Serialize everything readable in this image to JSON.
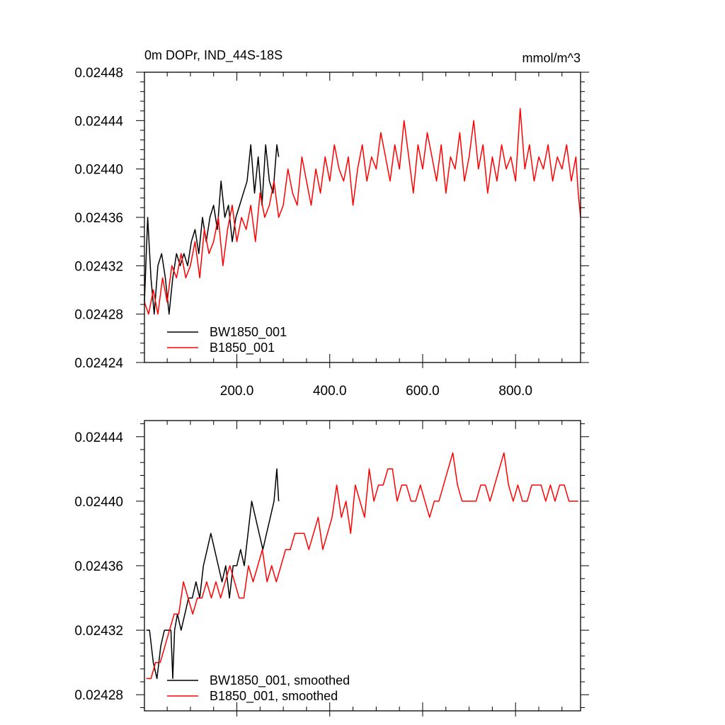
{
  "colors": {
    "BW": "#000000",
    "B": "#ff0000"
  },
  "chart_data": [
    {
      "type": "line",
      "title": "0m DOPr, IND_44S-18S",
      "units": "mmol/m^3",
      "xlabel": "",
      "ylabel": "",
      "xlim": [
        1,
        940
      ],
      "ylim": [
        0.02424,
        0.02448
      ],
      "x_ticks": [
        200,
        400,
        600,
        800
      ],
      "x_tick_labels": [
        "200.0",
        "400.0",
        "600.0",
        "800.0"
      ],
      "y_ticks": [
        0.02424,
        0.02428,
        0.02432,
        0.02436,
        0.0244,
        0.02444,
        0.02448
      ],
      "y_tick_labels": [
        "0.02424",
        "0.02428",
        "0.02432",
        "0.02436",
        "0.02440",
        "0.02444",
        "0.02448"
      ],
      "grid": false,
      "legend_position": "bottom-left",
      "series": [
        {
          "name": "BW1850_001",
          "color_key": "BW",
          "x": [
            1,
            8,
            15,
            22,
            30,
            38,
            46,
            54,
            62,
            70,
            78,
            86,
            94,
            102,
            110,
            118,
            126,
            134,
            142,
            150,
            158,
            166,
            174,
            182,
            190,
            198,
            206,
            214,
            222,
            230,
            238,
            246,
            254,
            262,
            270,
            278,
            286,
            290
          ],
          "y": [
            0.02429,
            0.02436,
            0.02431,
            0.02428,
            0.02432,
            0.02433,
            0.02431,
            0.02428,
            0.02431,
            0.02433,
            0.02432,
            0.02433,
            0.02432,
            0.02434,
            0.02435,
            0.02433,
            0.02436,
            0.02434,
            0.02436,
            0.02437,
            0.02435,
            0.02439,
            0.02436,
            0.02437,
            0.02434,
            0.02436,
            0.02437,
            0.02438,
            0.02439,
            0.02442,
            0.02438,
            0.02441,
            0.02437,
            0.02442,
            0.02439,
            0.02438,
            0.02442,
            0.02441
          ]
        },
        {
          "name": "B1850_001",
          "color_key": "B",
          "x": [
            1,
            10,
            20,
            30,
            40,
            50,
            60,
            70,
            80,
            90,
            100,
            110,
            120,
            130,
            140,
            150,
            160,
            170,
            180,
            190,
            200,
            210,
            220,
            230,
            240,
            250,
            260,
            270,
            280,
            290,
            300,
            310,
            320,
            330,
            340,
            350,
            360,
            370,
            380,
            390,
            400,
            410,
            420,
            430,
            440,
            450,
            460,
            470,
            480,
            490,
            500,
            510,
            520,
            530,
            540,
            550,
            560,
            570,
            580,
            590,
            600,
            610,
            620,
            630,
            640,
            650,
            660,
            670,
            680,
            690,
            700,
            710,
            720,
            730,
            740,
            750,
            760,
            770,
            780,
            790,
            800,
            810,
            820,
            830,
            840,
            850,
            860,
            870,
            880,
            890,
            900,
            910,
            920,
            930,
            935,
            940
          ],
          "y": [
            0.02429,
            0.02428,
            0.0243,
            0.02428,
            0.02431,
            0.02429,
            0.02432,
            0.02431,
            0.02433,
            0.02431,
            0.02432,
            0.02434,
            0.02431,
            0.02435,
            0.02433,
            0.02434,
            0.02436,
            0.02432,
            0.02435,
            0.02437,
            0.02434,
            0.02436,
            0.02435,
            0.02437,
            0.02434,
            0.02438,
            0.02436,
            0.02437,
            0.02439,
            0.02436,
            0.02437,
            0.0244,
            0.02438,
            0.02437,
            0.02441,
            0.02439,
            0.02437,
            0.0244,
            0.02438,
            0.02441,
            0.02439,
            0.02442,
            0.0244,
            0.02439,
            0.02441,
            0.02437,
            0.0244,
            0.02442,
            0.02439,
            0.02441,
            0.0244,
            0.02443,
            0.02441,
            0.02439,
            0.02442,
            0.0244,
            0.02444,
            0.02441,
            0.02438,
            0.02442,
            0.0244,
            0.02443,
            0.02441,
            0.02439,
            0.02442,
            0.02438,
            0.02441,
            0.0244,
            0.02443,
            0.02439,
            0.02441,
            0.02444,
            0.0244,
            0.02442,
            0.02438,
            0.02441,
            0.02439,
            0.02442,
            0.0244,
            0.02441,
            0.02439,
            0.02445,
            0.0244,
            0.02442,
            0.02439,
            0.02441,
            0.0244,
            0.02442,
            0.02439,
            0.02441,
            0.0244,
            0.02442,
            0.02439,
            0.02441,
            0.02438,
            0.02436
          ]
        }
      ]
    },
    {
      "type": "line",
      "title": "",
      "xlabel": "",
      "ylabel": "",
      "xlim": [
        1,
        940
      ],
      "ylim": [
        0.02427,
        0.02445
      ],
      "x_ticks": [
        200,
        400,
        600,
        800
      ],
      "y_ticks": [
        0.02428,
        0.02432,
        0.02436,
        0.0244,
        0.02444
      ],
      "y_tick_labels": [
        "0.02428",
        "0.02432",
        "0.02436",
        "0.02440",
        "0.02444"
      ],
      "grid": false,
      "legend_position": "bottom-left",
      "series": [
        {
          "name": "BW1850_001, smoothed",
          "color_key": "BW",
          "x": [
            5,
            12,
            20,
            28,
            36,
            44,
            52,
            58,
            62,
            66,
            72,
            80,
            88,
            96,
            104,
            112,
            120,
            128,
            136,
            144,
            152,
            160,
            168,
            176,
            184,
            192,
            200,
            208,
            216,
            224,
            232,
            240,
            248,
            256,
            264,
            272,
            280,
            286,
            290
          ],
          "y": [
            0.02432,
            0.02432,
            0.0243,
            0.02429,
            0.02431,
            0.02432,
            0.02432,
            0.02432,
            0.02429,
            0.02432,
            0.02433,
            0.02432,
            0.02433,
            0.02434,
            0.02434,
            0.02435,
            0.02434,
            0.02436,
            0.02437,
            0.02438,
            0.02437,
            0.02436,
            0.02435,
            0.02436,
            0.02434,
            0.02436,
            0.02436,
            0.02437,
            0.02436,
            0.02438,
            0.0244,
            0.02439,
            0.02438,
            0.02437,
            0.02438,
            0.02439,
            0.0244,
            0.02442,
            0.0244
          ]
        },
        {
          "name": "B1850_001, smoothed",
          "color_key": "B",
          "x": [
            5,
            15,
            25,
            35,
            45,
            55,
            65,
            75,
            85,
            95,
            105,
            115,
            125,
            135,
            145,
            155,
            165,
            175,
            185,
            195,
            205,
            215,
            225,
            235,
            245,
            255,
            265,
            275,
            285,
            295,
            305,
            315,
            325,
            335,
            345,
            355,
            365,
            375,
            385,
            395,
            405,
            415,
            425,
            435,
            445,
            455,
            465,
            475,
            485,
            495,
            505,
            515,
            525,
            535,
            545,
            555,
            565,
            575,
            585,
            595,
            605,
            615,
            625,
            635,
            645,
            655,
            665,
            675,
            685,
            695,
            705,
            715,
            725,
            735,
            745,
            755,
            765,
            775,
            785,
            795,
            805,
            815,
            825,
            835,
            845,
            855,
            865,
            875,
            885,
            895,
            905,
            915,
            925,
            935
          ],
          "y": [
            0.02429,
            0.02429,
            0.0243,
            0.0243,
            0.02431,
            0.02432,
            0.02433,
            0.02433,
            0.02435,
            0.02434,
            0.02433,
            0.02434,
            0.02434,
            0.02435,
            0.02434,
            0.02435,
            0.02434,
            0.02435,
            0.02436,
            0.02435,
            0.02434,
            0.02434,
            0.02436,
            0.02435,
            0.02436,
            0.02437,
            0.02435,
            0.02436,
            0.02435,
            0.02436,
            0.02437,
            0.02437,
            0.02438,
            0.02438,
            0.02438,
            0.02437,
            0.02438,
            0.02439,
            0.02437,
            0.02438,
            0.02439,
            0.02441,
            0.02439,
            0.0244,
            0.02438,
            0.02441,
            0.0244,
            0.02439,
            0.02442,
            0.0244,
            0.02441,
            0.02441,
            0.02442,
            0.02442,
            0.0244,
            0.02441,
            0.02441,
            0.0244,
            0.0244,
            0.02441,
            0.0244,
            0.02439,
            0.0244,
            0.0244,
            0.02441,
            0.02442,
            0.02443,
            0.02441,
            0.0244,
            0.0244,
            0.0244,
            0.0244,
            0.02441,
            0.02441,
            0.0244,
            0.02441,
            0.02442,
            0.02443,
            0.02441,
            0.0244,
            0.02441,
            0.0244,
            0.0244,
            0.02441,
            0.02441,
            0.02441,
            0.0244,
            0.02441,
            0.0244,
            0.02441,
            0.02441,
            0.0244,
            0.0244,
            0.0244
          ]
        }
      ]
    }
  ]
}
